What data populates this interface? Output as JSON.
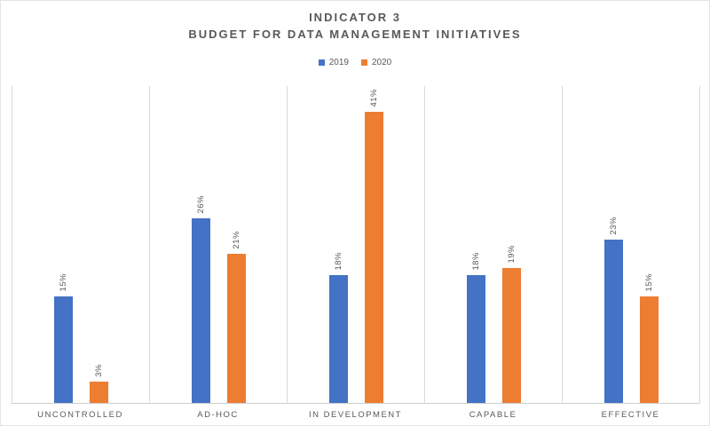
{
  "title": {
    "line1": "INDICATOR 3",
    "line2": "BUDGET FOR DATA MANAGEMENT INITIATIVES"
  },
  "chart_data": {
    "type": "bar",
    "title": "INDICATOR 3 - BUDGET FOR DATA MANAGEMENT INITIATIVES",
    "categories": [
      "UNCONTROLLED",
      "AD-HOC",
      "IN DEVELOPMENT",
      "CAPABLE",
      "EFFECTIVE"
    ],
    "series": [
      {
        "name": "2019",
        "color": "#4472C4",
        "values": [
          15,
          26,
          18,
          18,
          23
        ],
        "labels": [
          "15%",
          "26%",
          "18%",
          "18%",
          "23%"
        ]
      },
      {
        "name": "2020",
        "color": "#ED7D31",
        "values": [
          3,
          21,
          41,
          19,
          15
        ],
        "labels": [
          "3%",
          "21%",
          "41%",
          "19%",
          "15%"
        ]
      }
    ],
    "value_unit": "%",
    "ylim": [
      0,
      45
    ],
    "y_axis_visible": false,
    "data_labels": "rotated-vertical",
    "legend_position": "top",
    "grid": "vertical-category-separators"
  },
  "colors": {
    "series_2019": "#4472C4",
    "series_2020": "#ED7D31",
    "axis_line": "#CFCFCF",
    "gridline": "#D9D9D9",
    "text": "#595959"
  }
}
